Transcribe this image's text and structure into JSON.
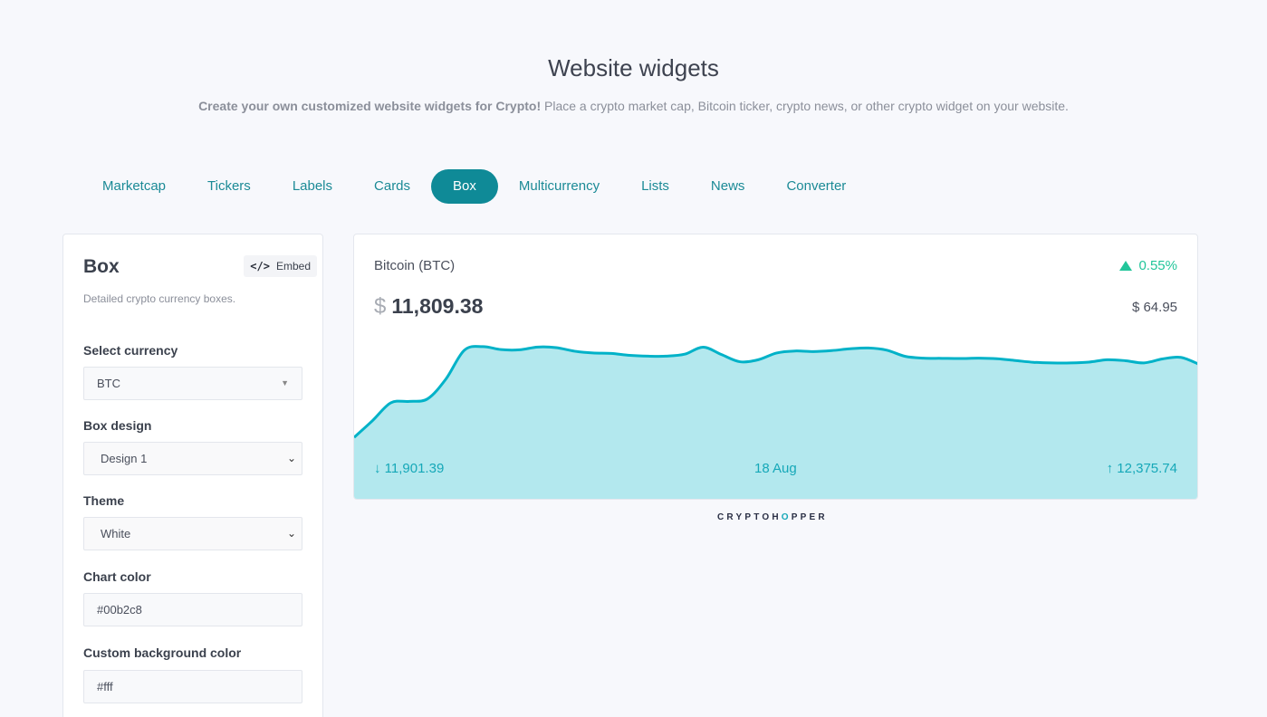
{
  "header": {
    "title": "Website widgets",
    "subtitle_bold": "Create your own customized website widgets for Crypto!",
    "subtitle_rest": " Place a crypto market cap, Bitcoin ticker, crypto news, or other crypto widget on your website."
  },
  "tabs": [
    {
      "label": "Marketcap",
      "active": false
    },
    {
      "label": "Tickers",
      "active": false
    },
    {
      "label": "Labels",
      "active": false
    },
    {
      "label": "Cards",
      "active": false
    },
    {
      "label": "Box",
      "active": true
    },
    {
      "label": "Multicurrency",
      "active": false
    },
    {
      "label": "Lists",
      "active": false
    },
    {
      "label": "News",
      "active": false
    },
    {
      "label": "Converter",
      "active": false
    }
  ],
  "sidebar": {
    "title": "Box",
    "embed_label": "Embed",
    "embed_icon": "code-icon",
    "description": "Detailed crypto currency boxes.",
    "fields": {
      "currency": {
        "label": "Select currency",
        "value": "BTC"
      },
      "design": {
        "label": "Box design",
        "value": "Design 1"
      },
      "theme": {
        "label": "Theme",
        "value": "White"
      },
      "chart_color": {
        "label": "Chart color",
        "value": "#00b2c8"
      },
      "bg_color": {
        "label": "Custom background color",
        "value": "#fff"
      }
    }
  },
  "widget": {
    "coin": "Bitcoin (BTC)",
    "change_pct": "0.55%",
    "currency_symbol": "$",
    "price": "11,809.38",
    "change_abs": "$ 64.95",
    "low": "↓ 11,901.39",
    "date": "18 Aug",
    "high": "↑ 12,375.74",
    "colors": {
      "line": "#00b2c8",
      "fill": "#b3e8ee",
      "up": "#22c59a"
    }
  },
  "chart_data": {
    "type": "area",
    "x": [
      0,
      1,
      2,
      3,
      4,
      5,
      6,
      7,
      8,
      9,
      10,
      11,
      12,
      13,
      14,
      15,
      16,
      17,
      18,
      19,
      20,
      21,
      22,
      23,
      24,
      25,
      26,
      27,
      28,
      29,
      30,
      31,
      32,
      33,
      34,
      35,
      36,
      37,
      38,
      39,
      40,
      41,
      42,
      43,
      44,
      45,
      46
    ],
    "values": [
      11901,
      11985,
      12075,
      12082,
      12095,
      12195,
      12340,
      12358,
      12343,
      12342,
      12356,
      12353,
      12335,
      12326,
      12324,
      12314,
      12310,
      12310,
      12320,
      12355,
      12318,
      12282,
      12292,
      12326,
      12336,
      12333,
      12338,
      12347,
      12351,
      12340,
      12309,
      12300,
      12299,
      12298,
      12300,
      12297,
      12288,
      12279,
      12276,
      12276,
      12280,
      12292,
      12287,
      12276,
      12296,
      12304,
      12269
    ],
    "ylim": [
      11901.39,
      12375.74
    ],
    "title": "",
    "xlabel": "",
    "ylabel": ""
  },
  "brand": {
    "pre": "CRYPTOH",
    "o": "O",
    "post": "PPER"
  }
}
